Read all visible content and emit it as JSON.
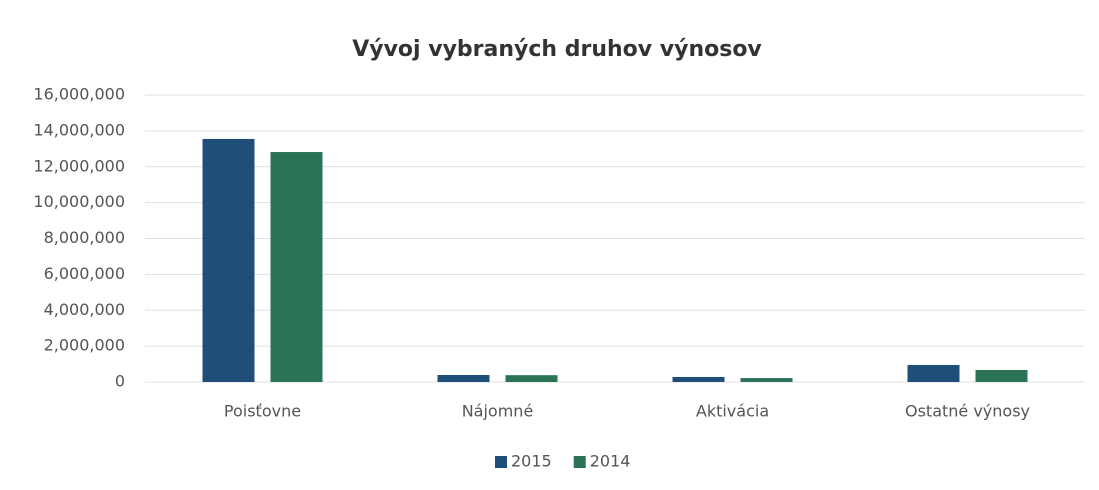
{
  "chart_data": {
    "type": "bar",
    "title": "Vývoj vybraných druhov výnosov",
    "categories": [
      "Poisťovne",
      "Nájomné",
      "Aktivácia",
      "Ostatné výnosy"
    ],
    "series": [
      {
        "name": "2015",
        "color": "#1f4e79",
        "values": [
          13550000,
          390000,
          280000,
          950000
        ]
      },
      {
        "name": "2014",
        "color": "#2a7356",
        "values": [
          12820000,
          380000,
          220000,
          670000
        ]
      }
    ],
    "ylim": [
      0,
      16000000
    ],
    "yticks": [
      0,
      {
        "value": 2000000,
        "label": "2,000,000"
      },
      {
        "value": 4000000,
        "label": "4,000,000"
      },
      {
        "value": 6000000,
        "label": "6,000,000"
      },
      {
        "value": 8000000,
        "label": "8,000,000"
      },
      {
        "value": 10000000,
        "label": "10,000,000"
      },
      {
        "value": 12000000,
        "label": "12,000,000"
      },
      {
        "value": 14000000,
        "label": "14,000,000"
      },
      {
        "value": 16000000,
        "label": "16,000,000"
      }
    ],
    "grid": true,
    "legend": "bottom"
  }
}
